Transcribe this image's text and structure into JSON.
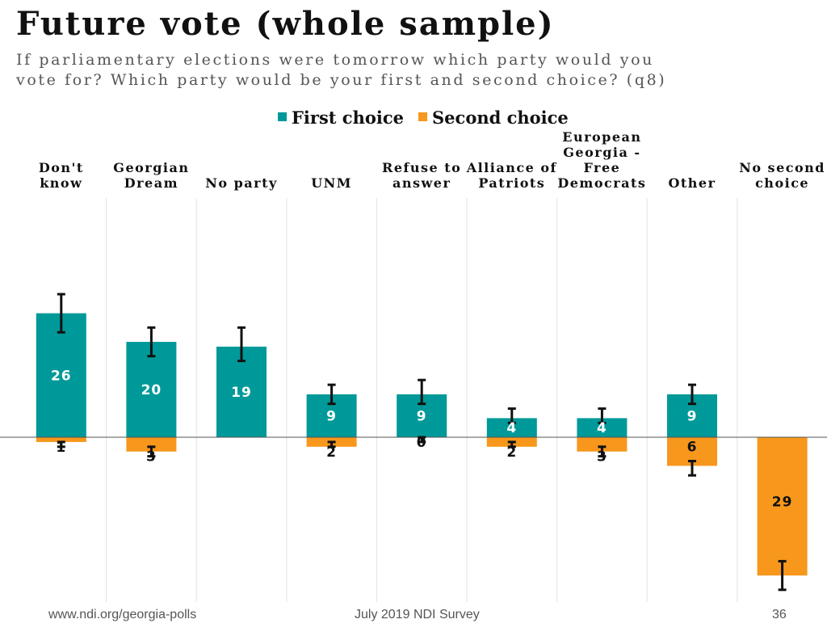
{
  "title": "Future vote (whole sample)",
  "subtitle": "If parliamentary elections were tomorrow which party would you vote for? Which party would be your first and second choice? (q8)",
  "footer": {
    "left": "www.ndi.org/georgia-polls",
    "center": "July 2019 NDI Survey",
    "page": "36"
  },
  "colors": {
    "first": "#009999",
    "second": "#F7971C",
    "divider": "#e3e3e3",
    "axis": "#555555"
  },
  "chart_data": {
    "type": "bar",
    "title": "Future vote (whole sample)",
    "categories": [
      [
        "Don't",
        "know"
      ],
      [
        "Georgian",
        "Dream"
      ],
      [
        "No party"
      ],
      [
        "UNM"
      ],
      [
        "Refuse to",
        "answer"
      ],
      [
        "Alliance of",
        "Patriots"
      ],
      [
        "European",
        "Georgia -",
        "Free",
        "Democrats"
      ],
      [
        "Other"
      ],
      [
        "No second",
        "choice"
      ]
    ],
    "legend": [
      "First choice",
      "Second choice"
    ],
    "series": [
      {
        "name": "First choice",
        "direction": "up",
        "values": [
          26,
          20,
          19,
          9,
          9,
          4,
          4,
          9,
          null
        ],
        "labels": [
          "26",
          "20",
          "19",
          "9",
          "9",
          "4",
          "4",
          "9",
          ""
        ],
        "error_low": [
          22,
          17,
          16,
          7,
          7,
          3,
          3,
          7,
          null
        ],
        "error_high": [
          30,
          23,
          23,
          11,
          12,
          6,
          6,
          11,
          null
        ]
      },
      {
        "name": "Second choice",
        "direction": "down",
        "values": [
          1,
          3,
          null,
          2,
          0,
          2,
          3,
          6,
          29
        ],
        "labels": [
          "1",
          "3",
          "",
          "2",
          "0",
          "2",
          "3",
          "6",
          "29"
        ],
        "error_low": [
          1,
          2,
          null,
          1,
          0,
          1,
          2,
          5,
          26
        ],
        "error_high": [
          2,
          4,
          null,
          2,
          1,
          2,
          4,
          8,
          32
        ]
      }
    ],
    "ylim": [
      -32,
      30
    ]
  }
}
